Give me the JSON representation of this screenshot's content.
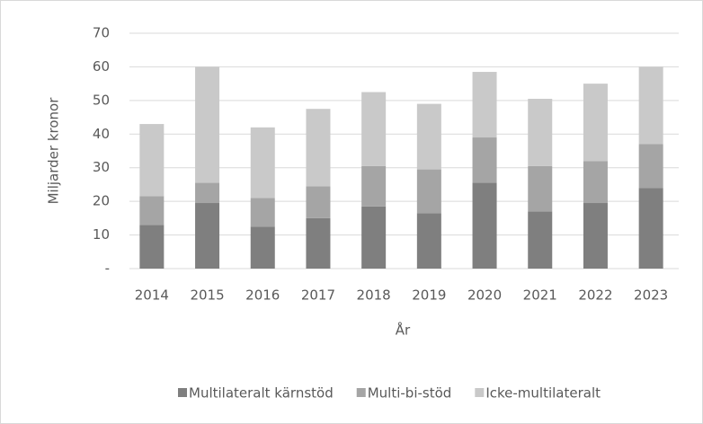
{
  "chart_data": {
    "type": "stacked_bar",
    "categories": [
      "2014",
      "2015",
      "2016",
      "2017",
      "2018",
      "2019",
      "2020",
      "2021",
      "2022",
      "2023"
    ],
    "series": [
      {
        "name": "Multilateralt kärnstöd",
        "color": "#7f7f7f",
        "values": [
          13,
          19.5,
          12.5,
          15,
          18.5,
          16.5,
          25.5,
          17,
          19.5,
          24
        ]
      },
      {
        "name": "Multi-bi-stöd",
        "color": "#a5a5a5",
        "values": [
          8.5,
          6,
          8.5,
          9.5,
          12,
          13,
          13.5,
          13.5,
          12.5,
          13
        ]
      },
      {
        "name": "Icke-multilateralt",
        "color": "#c9c9c9",
        "values": [
          21.5,
          34.5,
          21,
          23,
          22,
          19.5,
          19.5,
          20,
          23,
          23
        ]
      }
    ],
    "ylabel": "Miljarder kronor",
    "xlabel": "År",
    "ylim": [
      0,
      70
    ],
    "yticks": [
      {
        "value": 0,
        "label": "-"
      },
      10,
      20,
      30,
      40,
      50,
      60,
      70
    ],
    "grid": true,
    "legend": "bottom"
  }
}
